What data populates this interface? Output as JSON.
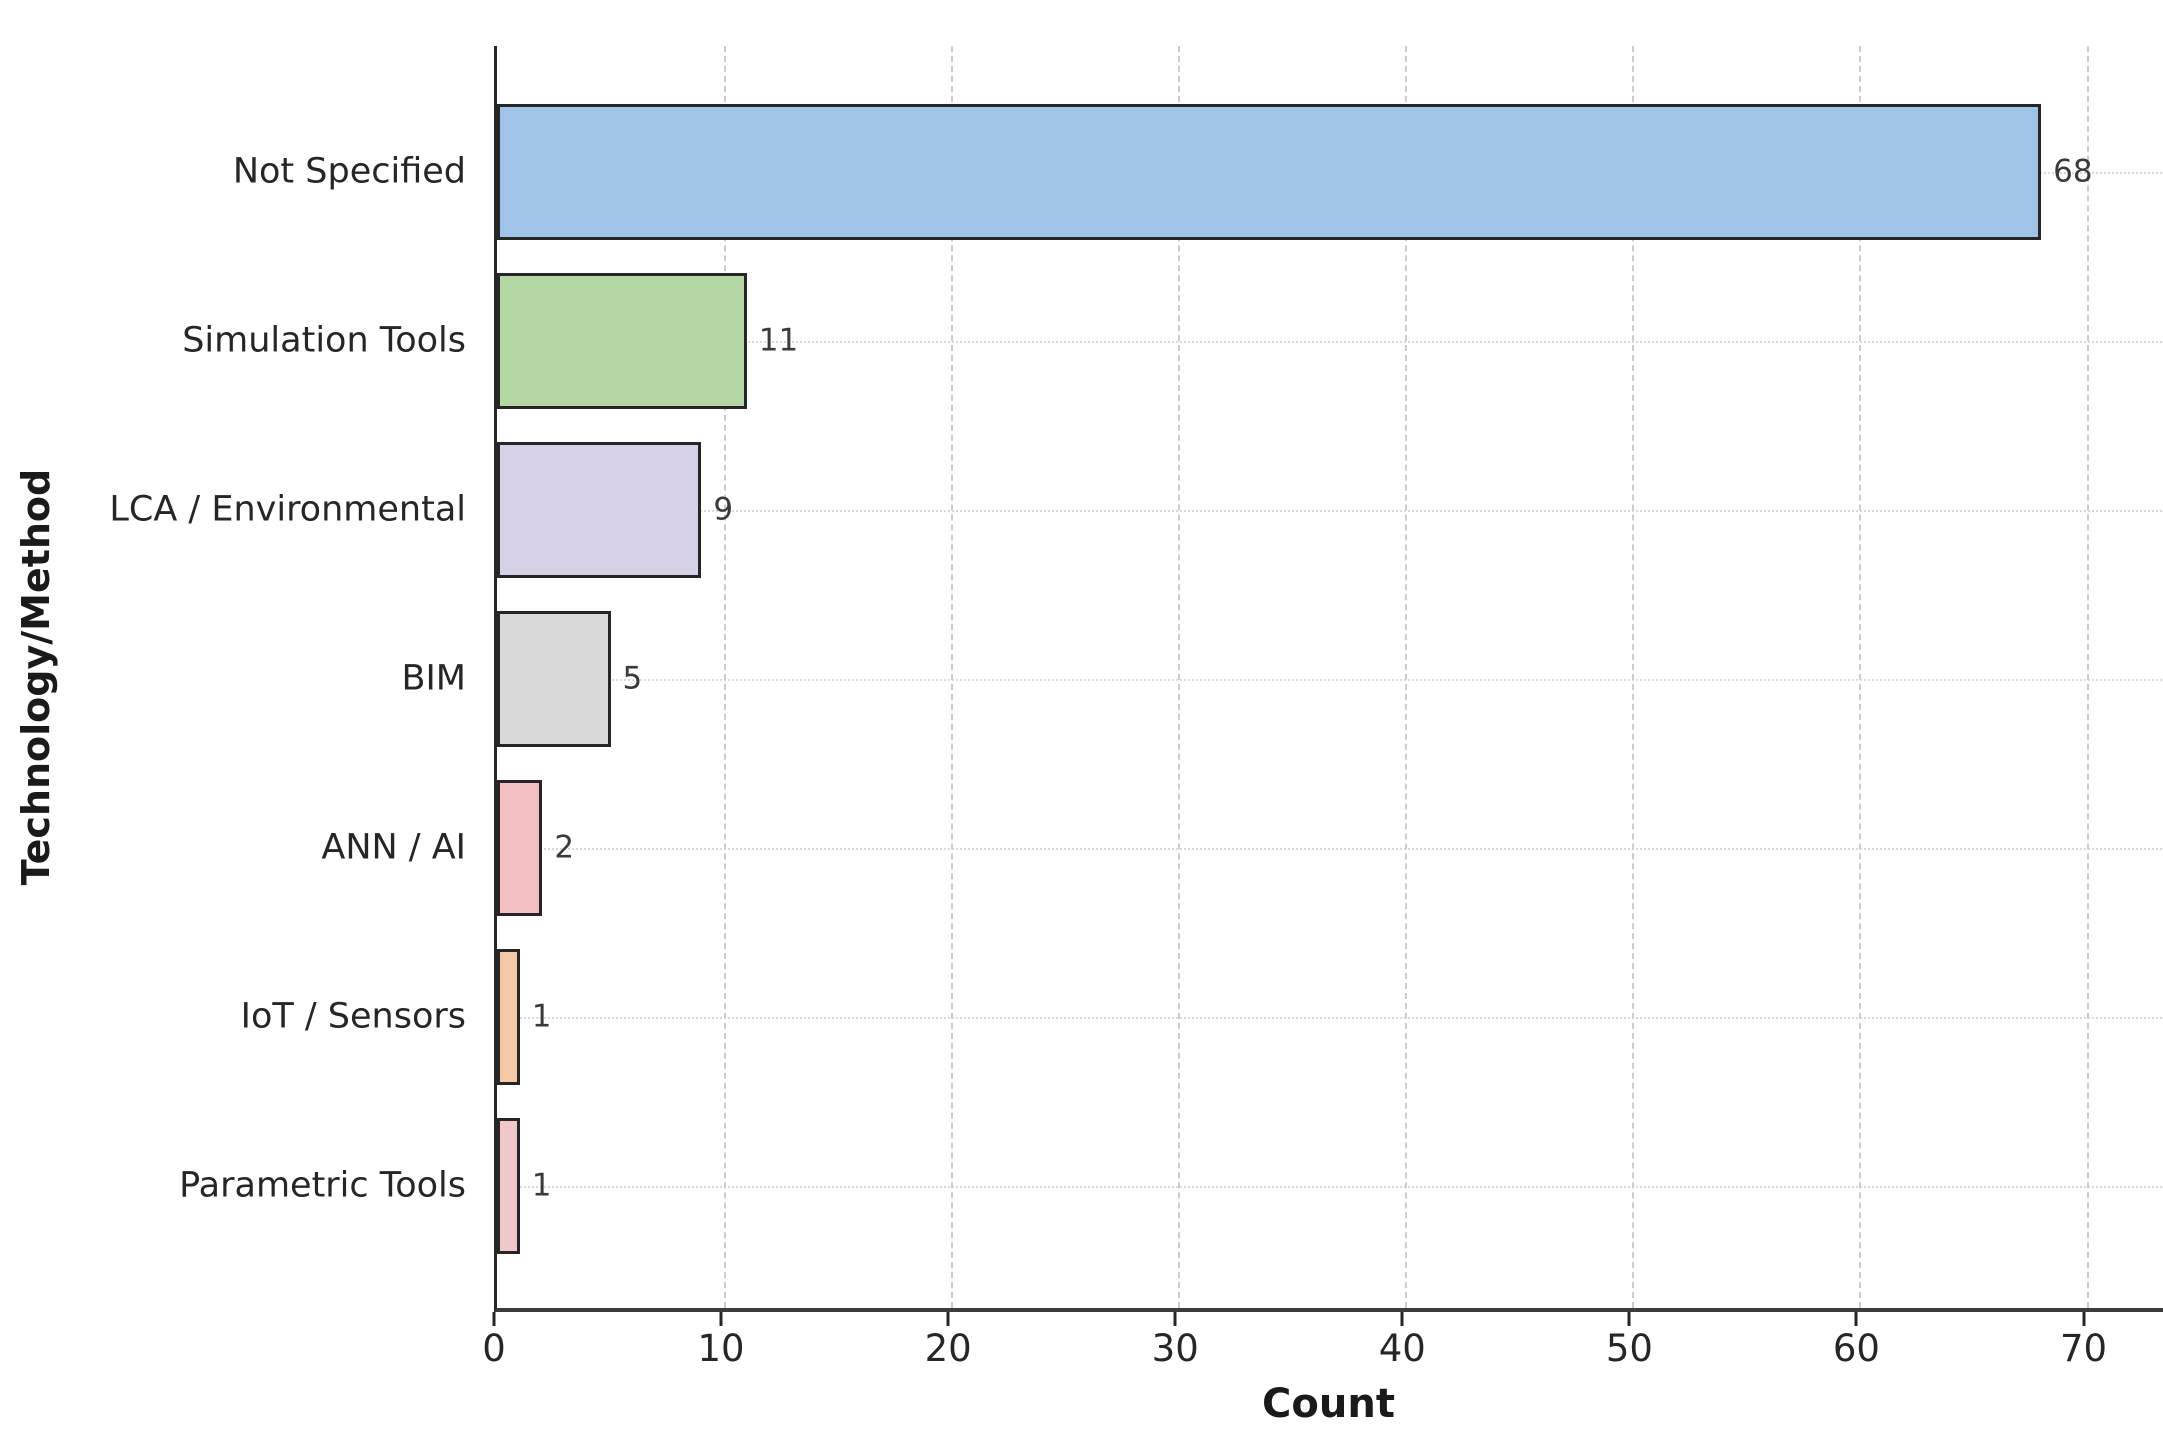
{
  "chart_data": {
    "type": "bar",
    "orientation": "horizontal",
    "title": "",
    "xlabel": "Count",
    "ylabel": "Technology/Method",
    "categories": [
      "Not Specified",
      "Simulation Tools",
      "LCA / Environmental",
      "BIM",
      "ANN / AI",
      "IoT / Sensors",
      "Parametric Tools"
    ],
    "values": [
      68,
      11,
      9,
      5,
      2,
      1,
      1
    ],
    "value_labels": [
      "68",
      "11",
      "9",
      "5",
      "2",
      "1",
      "1"
    ],
    "bar_colors": [
      "#9fc4e8",
      "#b5d7a6",
      "#d7d1e8",
      "#d9d9d9",
      "#f3bfc3",
      "#f6c9a6",
      "#f2c7ca"
    ],
    "bar_edge_color": "#262626",
    "x_ticks": [
      "0",
      "10",
      "20",
      "30",
      "40",
      "50",
      "60",
      "70"
    ],
    "x_tick_values": [
      0,
      10,
      20,
      30,
      40,
      50,
      60,
      70
    ],
    "xlim": [
      0,
      73.5
    ],
    "grid": {
      "vertical": "dashed",
      "vertical_color": "#cccccc",
      "horizontal": "dotted",
      "horizontal_color": "#d9d9d9"
    },
    "legend": "none",
    "background_color": "#ffffff"
  }
}
